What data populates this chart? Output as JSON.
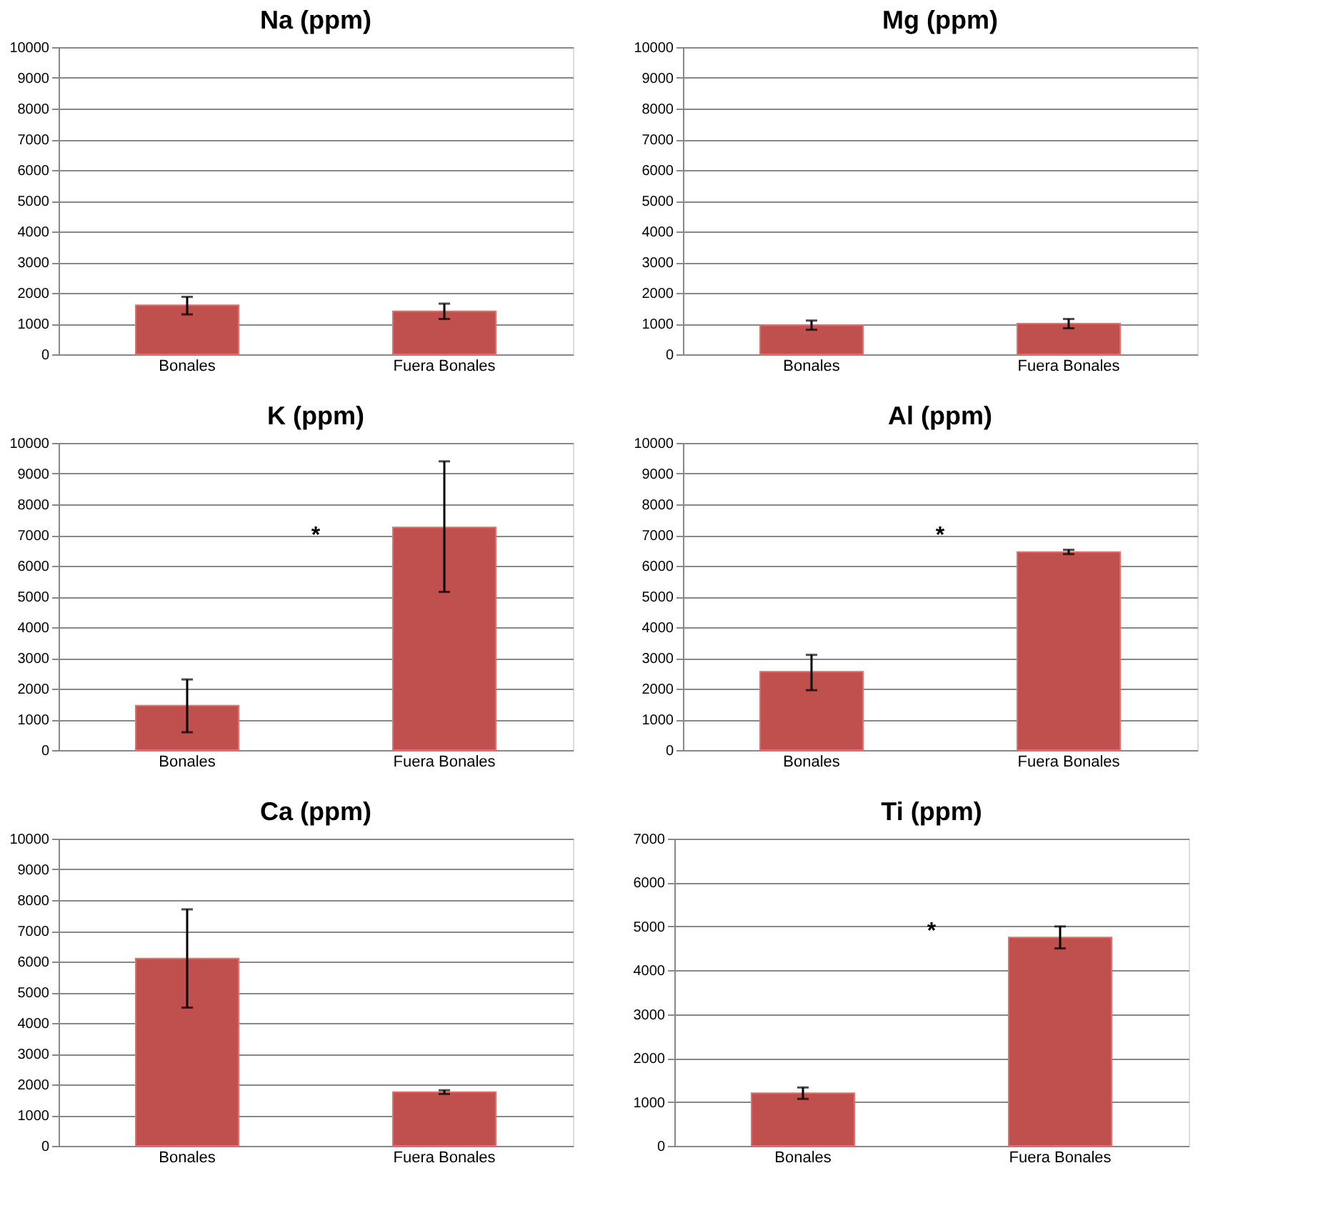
{
  "chart_data": [
    {
      "type": "bar",
      "title": "Na (ppm)",
      "categories": [
        "Bonales",
        "Fuera Bonales"
      ],
      "values": [
        1600,
        1400
      ],
      "errors": [
        [
          1300,
          1870
        ],
        [
          1150,
          1650
        ]
      ],
      "color": "#c0504d",
      "ylim": [
        0,
        10000
      ],
      "yticks": [
        0,
        1000,
        2000,
        3000,
        4000,
        5000,
        6000,
        7000,
        8000,
        9000,
        10000
      ],
      "grid": "y"
    },
    {
      "type": "bar",
      "title": "Mg (ppm)",
      "categories": [
        "Bonales",
        "Fuera Bonales"
      ],
      "values": [
        950,
        1000
      ],
      "errors": [
        [
          800,
          1100
        ],
        [
          850,
          1150
        ]
      ],
      "color": "#c0504d",
      "ylim": [
        0,
        10000
      ],
      "yticks": [
        0,
        1000,
        2000,
        3000,
        4000,
        5000,
        6000,
        7000,
        8000,
        9000,
        10000
      ],
      "grid": "y"
    },
    {
      "type": "bar",
      "title": "K (ppm)",
      "categories": [
        "Bonales",
        "Fuera Bonales"
      ],
      "values": [
        1450,
        7250
      ],
      "errors": [
        [
          580,
          2300
        ],
        [
          5150,
          9400
        ]
      ],
      "color": "#c0504d",
      "ylim": [
        0,
        10000
      ],
      "yticks": [
        0,
        1000,
        2000,
        3000,
        4000,
        5000,
        6000,
        7000,
        8000,
        9000,
        10000
      ],
      "grid": "y",
      "annotations": [
        "*"
      ]
    },
    {
      "type": "bar",
      "title": "Al (ppm)",
      "categories": [
        "Bonales",
        "Fuera Bonales"
      ],
      "values": [
        2550,
        6450
      ],
      "errors": [
        [
          1950,
          3100
        ],
        [
          6380,
          6520
        ]
      ],
      "color": "#c0504d",
      "ylim": [
        0,
        10000
      ],
      "yticks": [
        0,
        1000,
        2000,
        3000,
        4000,
        5000,
        6000,
        7000,
        8000,
        9000,
        10000
      ],
      "grid": "y",
      "annotations": [
        "*"
      ]
    },
    {
      "type": "bar",
      "title": "Ca (ppm)",
      "categories": [
        "Bonales",
        "Fuera Bonales"
      ],
      "values": [
        6100,
        1750
      ],
      "errors": [
        [
          4500,
          7700
        ],
        [
          1690,
          1810
        ]
      ],
      "color": "#c0504d",
      "ylim": [
        0,
        10000
      ],
      "yticks": [
        0,
        1000,
        2000,
        3000,
        4000,
        5000,
        6000,
        7000,
        8000,
        9000,
        10000
      ],
      "grid": "y"
    },
    {
      "type": "bar",
      "title": "Ti (ppm)",
      "categories": [
        "Bonales",
        "Fuera Bonales"
      ],
      "values": [
        1200,
        4750
      ],
      "errors": [
        [
          1070,
          1330
        ],
        [
          4500,
          5000
        ]
      ],
      "color": "#c0504d",
      "ylim": [
        0,
        7000
      ],
      "yticks": [
        0,
        1000,
        2000,
        3000,
        4000,
        5000,
        6000,
        7000
      ],
      "grid": "y",
      "annotations": [
        "*"
      ]
    }
  ]
}
